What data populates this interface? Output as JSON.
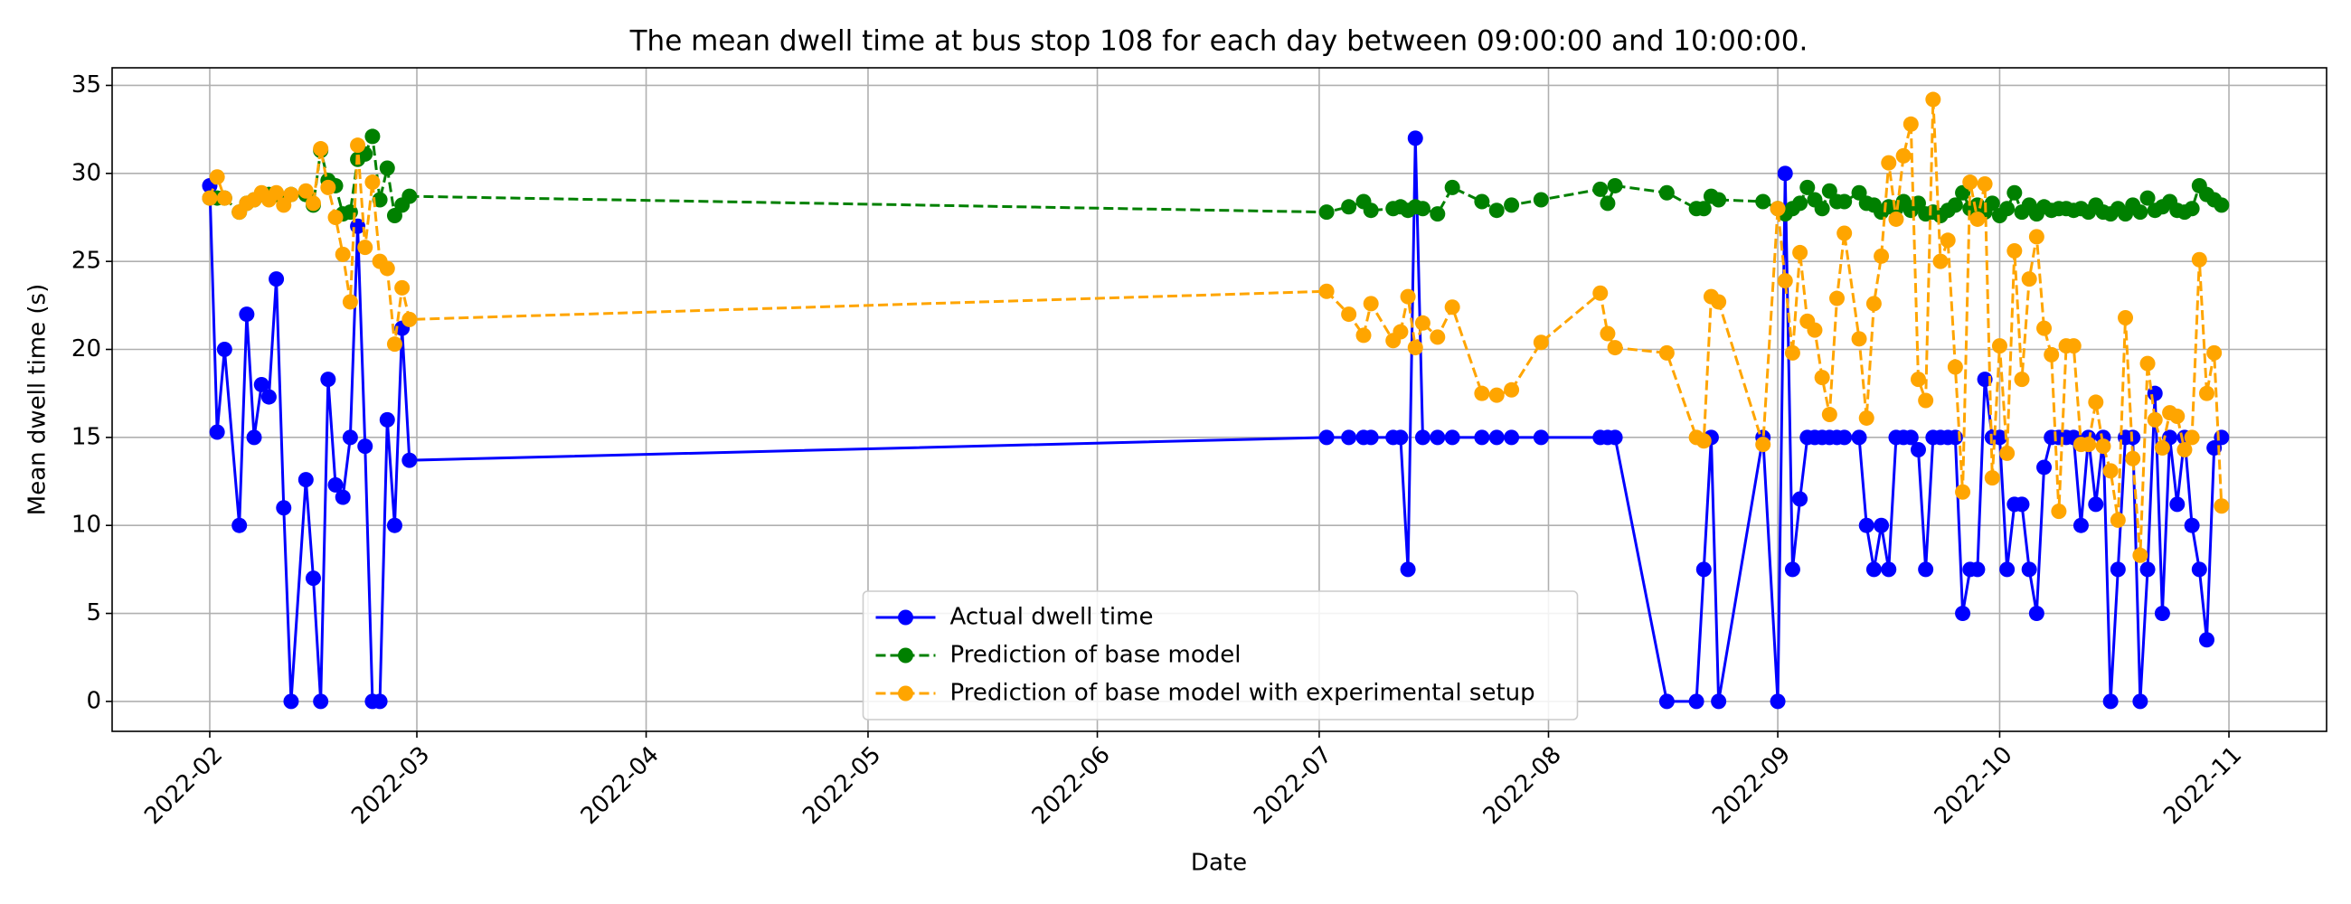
{
  "chart_data": {
    "type": "line",
    "title": "The mean dwell time at bus stop 108 for each day between 09:00:00 and 10:00:00.",
    "xlabel": "Date",
    "ylabel": "Mean dwell time (s)",
    "x": [
      32,
      33,
      34,
      36,
      37,
      38,
      39,
      40,
      41,
      42,
      43,
      45,
      46,
      47,
      48,
      49,
      50,
      51,
      52,
      53,
      54,
      55,
      56,
      57,
      58,
      59,
      183,
      186,
      188,
      189,
      192,
      193,
      194,
      195,
      196,
      198,
      200,
      204,
      206,
      208,
      212,
      220,
      221,
      222,
      229,
      233,
      234,
      235,
      236,
      242,
      244,
      245,
      246,
      247,
      248,
      249,
      250,
      251,
      252,
      253,
      255,
      256,
      257,
      258,
      259,
      260,
      261,
      262,
      263,
      264,
      265,
      266,
      267,
      268,
      269,
      270,
      271,
      272,
      273,
      274,
      275,
      276,
      277,
      278,
      279,
      280,
      281,
      282,
      283,
      284,
      285,
      286,
      287,
      288,
      289,
      290,
      291,
      292,
      293,
      294,
      295,
      296,
      297,
      298,
      299,
      300,
      301,
      302,
      303,
      304
    ],
    "series": [
      {
        "name": "Actual dwell time",
        "color": "#0000ff",
        "dashed": false,
        "values": [
          29.3,
          15.3,
          20,
          10,
          22,
          15,
          18,
          17.3,
          24,
          11,
          0,
          12.6,
          7,
          0,
          18.3,
          12.3,
          11.6,
          15,
          27,
          14.5,
          0,
          0,
          16,
          10,
          21.2,
          13.7,
          15,
          15,
          15,
          15,
          15,
          15,
          7.5,
          32,
          15,
          15,
          15,
          15,
          15,
          15,
          15,
          15,
          15,
          15,
          0,
          0,
          7.5,
          15,
          0,
          15,
          0,
          30,
          7.5,
          11.5,
          15,
          15,
          15,
          15,
          15,
          15,
          15,
          10,
          7.5,
          10,
          7.5,
          15,
          15,
          15,
          14.3,
          7.5,
          15,
          15,
          15,
          15,
          5,
          7.5,
          7.5,
          18.3,
          15,
          15,
          7.5,
          11.2,
          11.2,
          7.5,
          5,
          13.3,
          15,
          15,
          15,
          15,
          10,
          15,
          11.2,
          15,
          0,
          7.5,
          15,
          15,
          0,
          7.5,
          17.5,
          5,
          15,
          11.2,
          15,
          10,
          7.5,
          3.5,
          14.4,
          15
        ]
      },
      {
        "name": "Prediction of base model",
        "color": "#008000",
        "dashed": true,
        "values": [
          28.6,
          28.6,
          28.6,
          27.8,
          28.3,
          28.5,
          28.8,
          28.8,
          28.8,
          28.5,
          28.8,
          28.8,
          28.2,
          31.3,
          29.6,
          29.3,
          27.7,
          27.8,
          30.8,
          31.1,
          32.1,
          28.5,
          30.3,
          27.6,
          28.2,
          28.7,
          27.8,
          28.1,
          28.4,
          27.9,
          28.0,
          28.1,
          27.9,
          28.1,
          28.0,
          27.7,
          29.2,
          28.4,
          27.9,
          28.2,
          28.5,
          29.1,
          28.3,
          29.3,
          28.9,
          28.0,
          28.0,
          28.7,
          28.5,
          28.4,
          28.0,
          27.7,
          28.0,
          28.3,
          29.2,
          28.5,
          28.0,
          29.0,
          28.4,
          28.4,
          28.9,
          28.3,
          28.2,
          27.8,
          28.1,
          28.0,
          28.4,
          27.9,
          28.3,
          27.7,
          27.8,
          27.6,
          27.9,
          28.2,
          28.9,
          28.0,
          28.2,
          27.8,
          28.3,
          27.6,
          28.0,
          28.9,
          27.8,
          28.2,
          27.7,
          28.1,
          27.9,
          28.0,
          28.0,
          27.9,
          28.0,
          27.8,
          28.2,
          27.8,
          27.7,
          28.0,
          27.7,
          28.2,
          27.8,
          28.6,
          27.9,
          28.1,
          28.4,
          27.9,
          27.8,
          28.0,
          29.3,
          28.8,
          28.5,
          28.2
        ]
      },
      {
        "name": "Prediction of base model with experimental setup",
        "color": "#ffa500",
        "dashed": true,
        "values": [
          28.6,
          29.8,
          28.6,
          27.8,
          28.3,
          28.5,
          28.9,
          28.5,
          28.9,
          28.2,
          28.8,
          29.0,
          28.3,
          31.4,
          29.2,
          27.5,
          25.4,
          22.7,
          31.6,
          25.8,
          29.5,
          25.0,
          24.6,
          20.3,
          23.5,
          21.7,
          23.3,
          22.0,
          20.8,
          22.6,
          20.5,
          21.0,
          23.0,
          20.1,
          21.5,
          20.7,
          22.4,
          17.5,
          17.4,
          17.7,
          20.4,
          23.2,
          20.9,
          20.1,
          19.8,
          15.0,
          14.8,
          23.0,
          22.7,
          14.6,
          28.0,
          23.9,
          19.8,
          25.5,
          21.6,
          21.1,
          18.4,
          16.3,
          22.9,
          26.6,
          20.6,
          16.1,
          22.6,
          25.3,
          30.6,
          27.4,
          31.0,
          32.8,
          18.3,
          17.1,
          34.2,
          25.0,
          26.2,
          19.0,
          11.9,
          29.5,
          27.4,
          29.4,
          12.7,
          20.2,
          14.1,
          25.6,
          18.3,
          24.0,
          26.4,
          21.2,
          19.7,
          10.8,
          20.2,
          20.2,
          14.6,
          14.6,
          17.0,
          14.5,
          13.1,
          10.3,
          21.8,
          13.8,
          8.3,
          19.2,
          16.0,
          14.4,
          16.4,
          16.2,
          14.3,
          15.0,
          25.1,
          17.5,
          19.8,
          11.1
        ]
      }
    ],
    "xlim": [
      18.8,
      318.2
    ],
    "xticks": [
      {
        "value": 32,
        "label": "2022-02"
      },
      {
        "value": 60,
        "label": "2022-03"
      },
      {
        "value": 91,
        "label": "2022-04"
      },
      {
        "value": 121,
        "label": "2022-05"
      },
      {
        "value": 152,
        "label": "2022-06"
      },
      {
        "value": 182,
        "label": "2022-07"
      },
      {
        "value": 213,
        "label": "2022-08"
      },
      {
        "value": 244,
        "label": "2022-09"
      },
      {
        "value": 274,
        "label": "2022-10"
      },
      {
        "value": 305,
        "label": "2022-11"
      }
    ],
    "ylim": [
      -1.7,
      36
    ],
    "yticks": [
      0,
      5,
      10,
      15,
      20,
      25,
      30,
      35
    ],
    "grid": true,
    "legend": "lower center"
  }
}
